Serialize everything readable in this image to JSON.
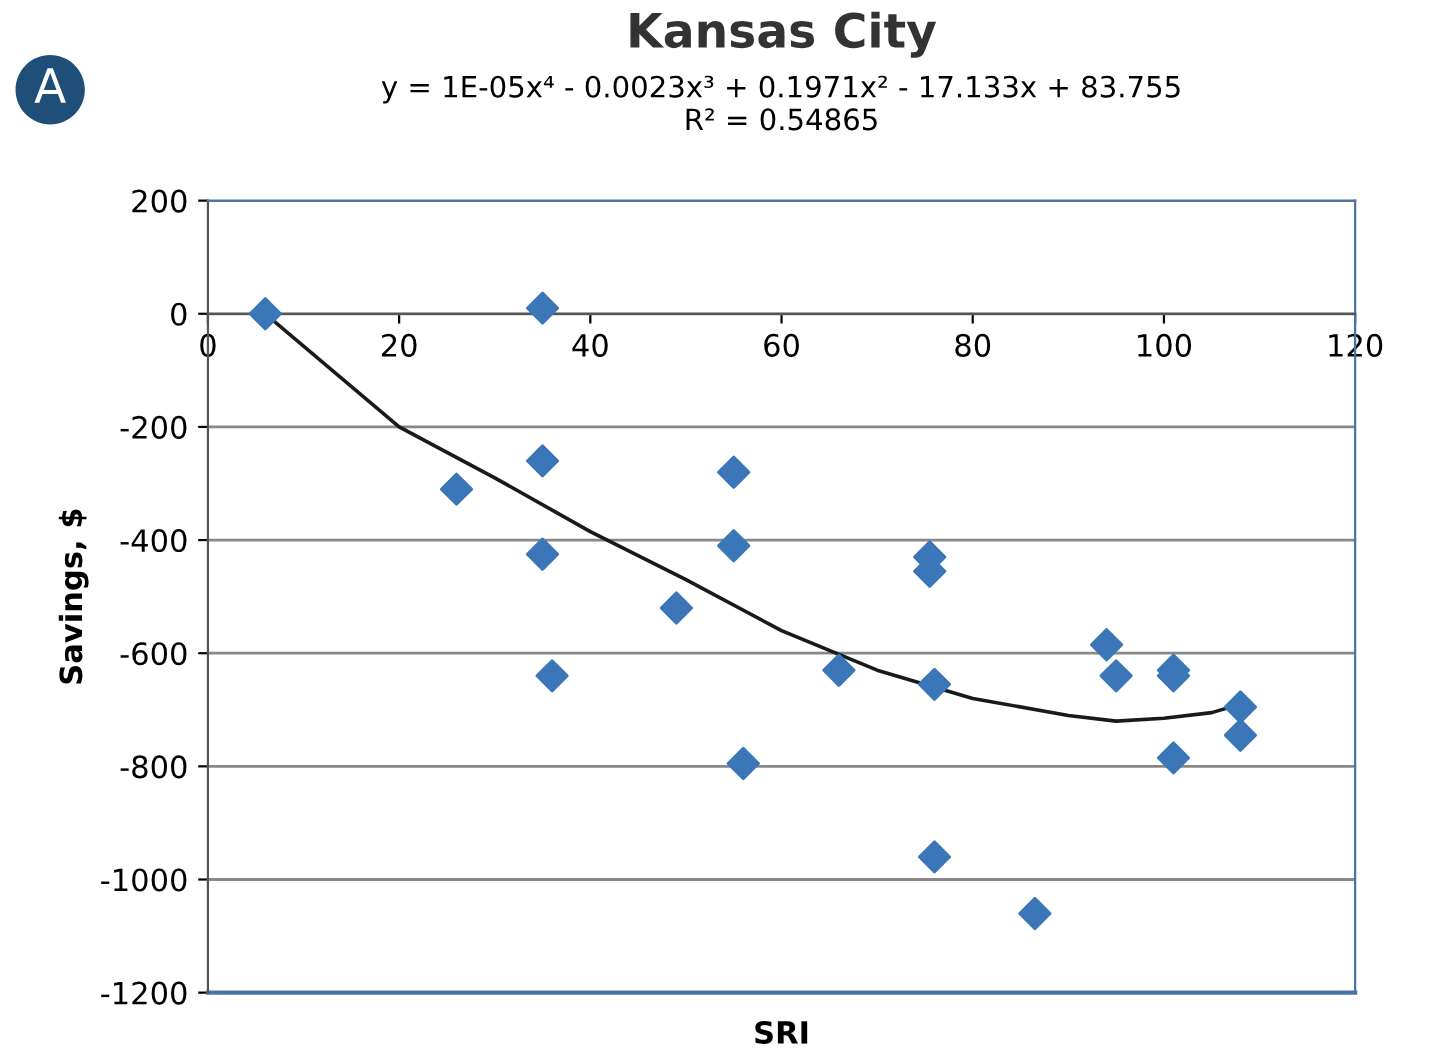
{
  "chart_data": {
    "type": "scatter",
    "title": "Kansas City",
    "subtitle": "y = 1E-05x⁴ - 0.0023x³ + 0.1971x² - 17.133x + 83.755\nR² = 0.54865",
    "xlabel": "SRI",
    "ylabel": "Savings, $",
    "annotations": [
      "A"
    ],
    "xlim": [
      0,
      120
    ],
    "xticks": [
      0,
      20,
      40,
      60,
      80,
      100,
      120
    ],
    "ylim": [
      -1200,
      200
    ],
    "yticks": [
      -1200,
      -1000,
      -800,
      -600,
      -400,
      -200,
      0,
      200
    ],
    "grid": "y",
    "legend": false,
    "marker": "diamond",
    "series": [
      {
        "color": "#3a76b8",
        "x": [
          6,
          35,
          26,
          35,
          35,
          36,
          49,
          55,
          55,
          56,
          66,
          75.5,
          75.5,
          76,
          76,
          86.5,
          94,
          95,
          101,
          101,
          101,
          108,
          108
        ],
        "values": [
          0,
          10,
          -310,
          -260,
          -425,
          -640,
          -520,
          -280,
          -410,
          -795,
          -630,
          -430,
          -455,
          -655,
          -960,
          -1060,
          -585,
          -640,
          -630,
          -640,
          -785,
          -695,
          -745
        ]
      },
      {
        "type": "line",
        "color": "#1a1a1a",
        "marker": "none",
        "line_style": "solid",
        "x": [
          6,
          20,
          30,
          40,
          50,
          60,
          70,
          80,
          90,
          95,
          100,
          105,
          108
        ],
        "values": [
          0,
          -200,
          -290,
          -385,
          -470,
          -560,
          -630,
          -680,
          -710,
          -720,
          -715,
          -705,
          -690
        ]
      }
    ]
  }
}
